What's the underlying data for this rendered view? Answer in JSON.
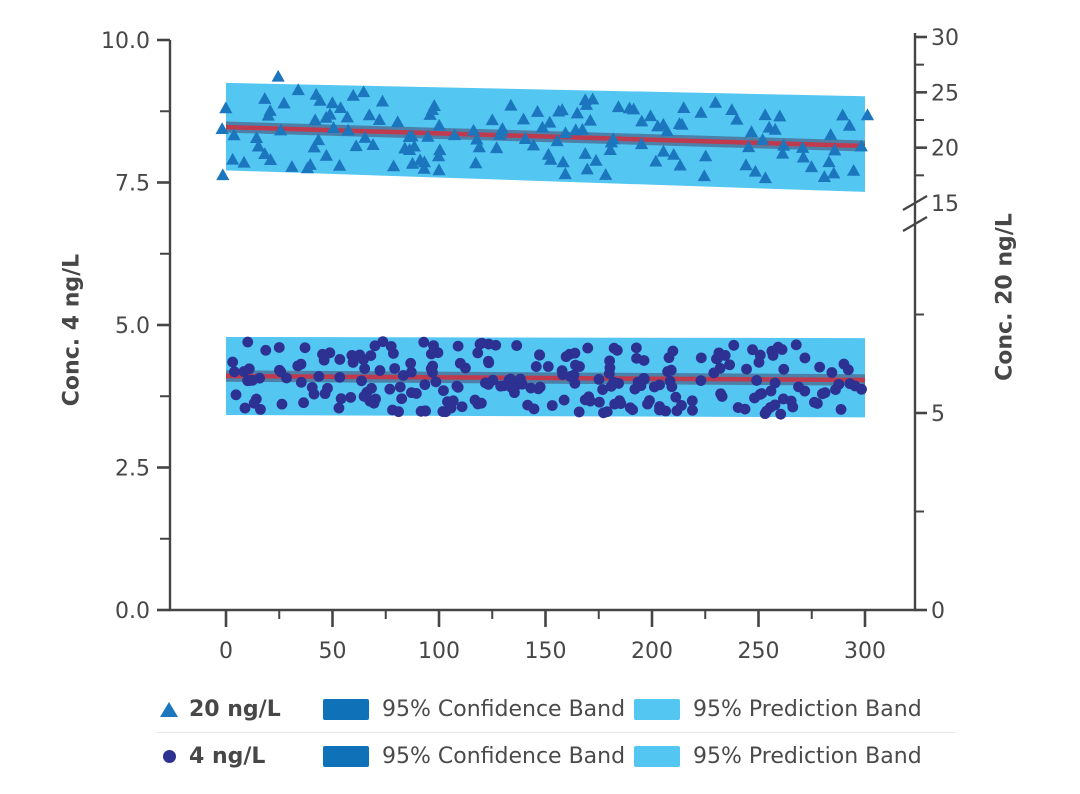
{
  "colors": {
    "triangle_marker": "#1b76bd",
    "circle_marker": "#2d3192",
    "prediction_band": "#53c6f1",
    "confidence_band_swatch": "#0f72b9",
    "confidence_band_plot": "#4c80a8",
    "fit_line": "#bf3a4e",
    "axis": "#454545",
    "text": "#474747",
    "divider": "#e5e5e5"
  },
  "chart_data": {
    "type": "scatter",
    "title": "",
    "x_axis": {
      "label": "",
      "range": [
        0,
        300
      ],
      "major_ticks": [
        0,
        50,
        100,
        150,
        200,
        250,
        300
      ],
      "minor_ticks": [
        25,
        75,
        125,
        175,
        225,
        275
      ],
      "tick_labels": [
        "0",
        "50",
        "100",
        "150",
        "200",
        "250",
        "300"
      ]
    },
    "left_axis": {
      "label": "Conc. 4 ng/L",
      "range": [
        0,
        10
      ],
      "major_ticks": [
        {
          "v": 0,
          "label": "0.0"
        },
        {
          "v": 2.5,
          "label": "2.5"
        },
        {
          "v": 5,
          "label": "5.0"
        },
        {
          "v": 7.5,
          "label": "7.5"
        },
        {
          "v": 10,
          "label": "10.0"
        }
      ],
      "minor_ticks": [
        1.25,
        3.75,
        6.25,
        8.75
      ]
    },
    "right_axis": {
      "label": "Conc. 20 ng/L",
      "range": [
        0,
        30
      ],
      "axis_break_between": [
        10,
        15
      ],
      "lower_major_ticks": [
        {
          "v": 0,
          "label": "0"
        },
        {
          "v": 5,
          "label": "5"
        }
      ],
      "lower_minor_ticks": [
        2.5,
        7.5
      ],
      "break_label": {
        "v": 15,
        "label": "15"
      },
      "upper_major_ticks": [
        {
          "v": 20,
          "label": "20"
        },
        {
          "v": 25,
          "label": "25"
        },
        {
          "v": 30,
          "label": "30"
        }
      ],
      "upper_minor_ticks": [
        17.5,
        22.5,
        27.5
      ]
    },
    "series": [
      {
        "name": "20 ng/L",
        "marker": "triangle",
        "axis": "right",
        "n_points": 145,
        "x_range": [
          -3,
          303
        ],
        "fit_line": {
          "x": [
            0,
            300
          ],
          "y": [
            21.86,
            20.15
          ]
        },
        "prediction_band": {
          "x": [
            0,
            300
          ],
          "upper": [
            25.85,
            24.65
          ],
          "lower": [
            17.95,
            16.0
          ]
        },
        "confidence_half_width": 0.5,
        "scatter_half_range": 3.55,
        "outliers": [
          {
            "x": 24.5,
            "y": 26.4
          },
          {
            "x": -1.5,
            "y": 17.5
          }
        ]
      },
      {
        "name": "4 ng/L",
        "marker": "circle",
        "axis": "left",
        "n_points": 240,
        "x_range": [
          -2,
          302
        ],
        "fit_line": {
          "x": [
            0,
            300
          ],
          "y": [
            4.105,
            4.035
          ]
        },
        "prediction_band": {
          "x": [
            0,
            300
          ],
          "upper": [
            4.79,
            4.77
          ],
          "lower": [
            3.42,
            3.38
          ]
        },
        "confidence_half_width": 0.1,
        "scatter_half_range": 0.62,
        "outliers": []
      }
    ],
    "legend_position": "bottom"
  },
  "legend": {
    "rows": [
      {
        "series": "20 ng/L",
        "confidence": "95% Confidence Band",
        "prediction": "95% Prediction Band"
      },
      {
        "series": "4 ng/L",
        "confidence": "95% Confidence Band",
        "prediction": "95% Prediction Band"
      }
    ]
  }
}
